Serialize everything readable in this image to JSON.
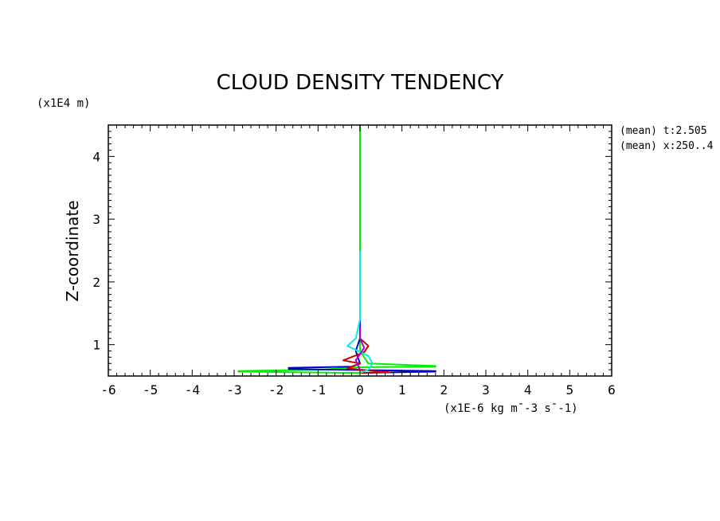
{
  "chart_data": {
    "type": "line",
    "title": "CLOUD DENSITY TENDENCY",
    "ylabel": "Z-coordinate",
    "y_unit": "(x1E4 m)",
    "x_unit": "(x1E-6 kg m¯-3 s¯-1)",
    "annotations": [
      "(mean) t:2.505",
      "(mean) x:250..4"
    ],
    "xlim": [
      -6,
      6
    ],
    "ylim": [
      0.5,
      4.5
    ],
    "x_ticks": [
      "-6",
      "-5",
      "-4",
      "-3",
      "-2",
      "-1",
      "0",
      "1",
      "2",
      "3",
      "4",
      "5",
      "6"
    ],
    "y_ticks": [
      "1",
      "2",
      "3",
      "4"
    ],
    "grid": false,
    "series": [
      {
        "color": "#00ee00",
        "x": [
          0.0,
          -2.9,
          -2.9,
          -1.0,
          0.0,
          1.8,
          1.8,
          0.2,
          0.0,
          0.0,
          0.0
        ],
        "y": [
          0.55,
          0.57,
          0.58,
          0.6,
          0.64,
          0.65,
          0.66,
          0.7,
          0.9,
          2.0,
          4.5
        ]
      },
      {
        "color": "#0000cc",
        "x": [
          0.0,
          1.8,
          1.8,
          -1.7,
          -1.7,
          -0.2,
          0.0,
          -0.1,
          0.0,
          0.0
        ],
        "y": [
          0.55,
          0.57,
          0.58,
          0.61,
          0.63,
          0.65,
          0.7,
          0.9,
          1.1,
          1.4
        ]
      },
      {
        "color": "#cc0000",
        "x": [
          0.0,
          0.7,
          -0.3,
          0.0,
          -0.4,
          0.1,
          0.2,
          0.0,
          0.0
        ],
        "y": [
          0.55,
          0.56,
          0.62,
          0.7,
          0.75,
          0.88,
          0.98,
          1.1,
          1.3
        ]
      },
      {
        "color": "#00eeee",
        "x": [
          0.0,
          0.2,
          0.3,
          0.2,
          -0.3,
          -0.1,
          0.0,
          0.0
        ],
        "y": [
          0.55,
          0.6,
          0.7,
          0.82,
          0.98,
          1.1,
          1.4,
          2.5
        ]
      },
      {
        "color": "#aa00cc",
        "x": [
          0.0,
          -0.1,
          0.1,
          0.0,
          0.0
        ],
        "y": [
          0.6,
          0.75,
          0.95,
          1.1,
          1.3
        ]
      }
    ]
  }
}
